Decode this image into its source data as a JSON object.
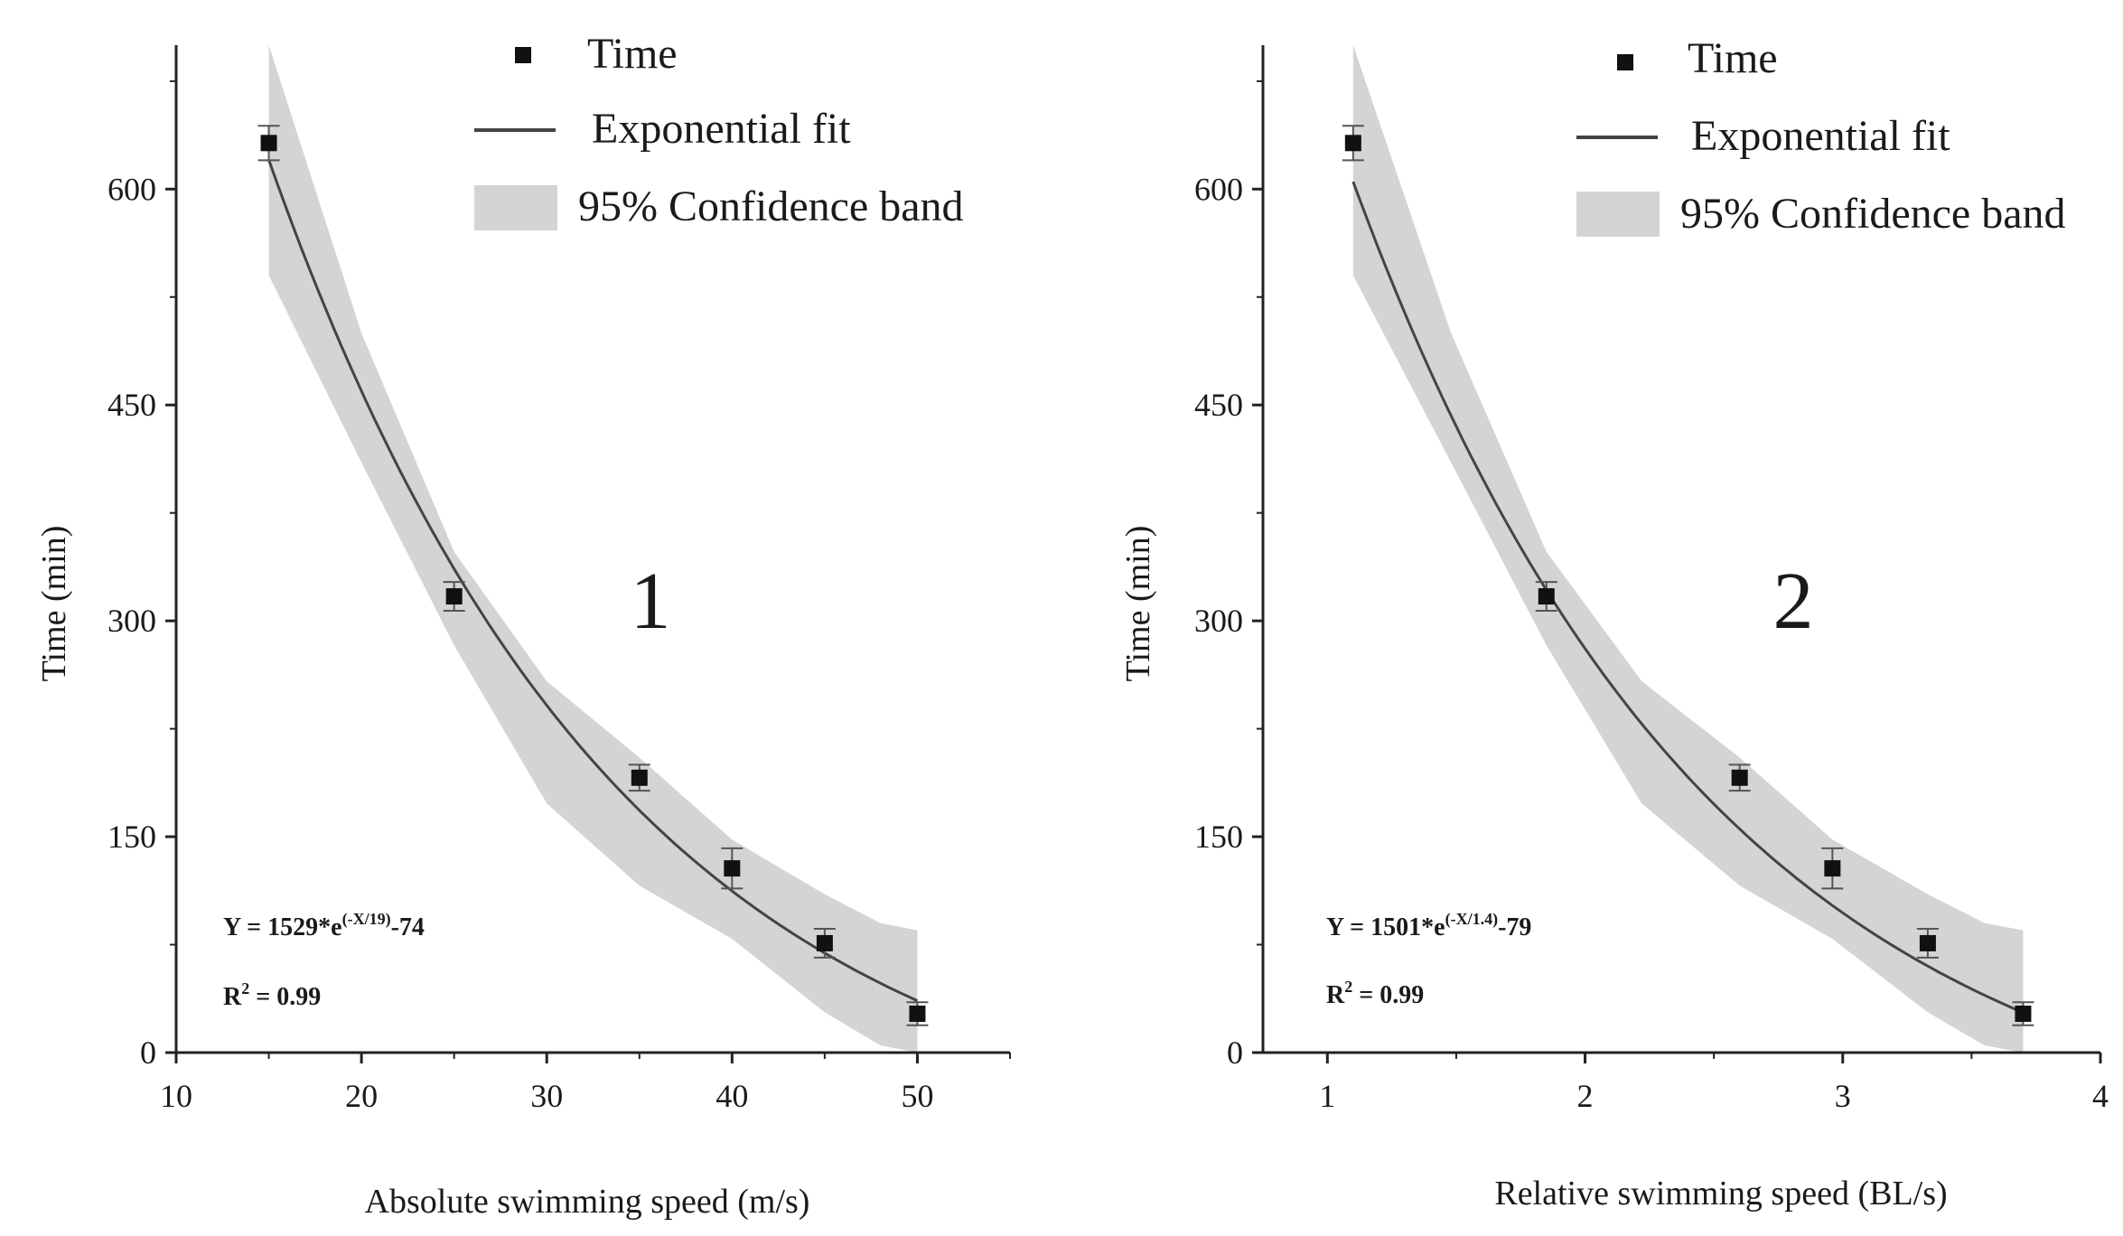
{
  "chart_data": [
    {
      "type": "scatter",
      "panel_label": "1",
      "xlabel": "Absolute swimming speed (m/s)",
      "ylabel": "Time (min)",
      "xlim": [
        10,
        55
      ],
      "ylim": [
        0,
        700
      ],
      "xticks": [
        10,
        20,
        30,
        40,
        50
      ],
      "yticks": [
        0,
        150,
        300,
        450,
        600
      ],
      "series": [
        {
          "name": "Time",
          "x": [
            15,
            25,
            35,
            40,
            45,
            50
          ],
          "y": [
            632,
            317,
            191,
            128,
            76,
            27
          ],
          "error": [
            12,
            10,
            9,
            14,
            10,
            8
          ]
        }
      ],
      "fit": {
        "name": "Exponential fit",
        "a": 1529,
        "b": 19,
        "c": -74,
        "x_range": [
          15,
          50
        ]
      },
      "band": {
        "name": "95% Confidence band",
        "x": [
          15,
          20,
          25,
          30,
          35,
          40,
          45,
          48,
          50
        ],
        "upper": [
          700,
          500,
          348,
          258,
          205,
          148,
          110,
          90,
          85
        ],
        "lower": [
          540,
          410,
          283,
          173,
          116,
          79,
          28,
          5,
          0
        ]
      },
      "legend": {
        "marker": "Time",
        "line": "Exponential fit",
        "band": "95% Confidence band"
      },
      "equation": {
        "main": "Y = 1529*e",
        "exponent": "(-X/19)",
        "tail": "-74"
      },
      "r2": {
        "prefix": "R",
        "sup": "2",
        "rest": " = 0.99"
      },
      "colors": {
        "marker": "#111111",
        "line": "#444444",
        "band": "#d4d4d4",
        "axis": "#222222"
      }
    },
    {
      "type": "scatter",
      "panel_label": "2",
      "xlabel": "Relative swimming speed (BL/s)",
      "ylabel": "Time (min)",
      "xlim": [
        0.75,
        4
      ],
      "ylim": [
        0,
        700
      ],
      "xticks": [
        1,
        2,
        3,
        4
      ],
      "yticks": [
        0,
        150,
        300,
        450,
        600
      ],
      "series": [
        {
          "name": "Time",
          "x": [
            1.1,
            1.85,
            2.6,
            2.96,
            3.33,
            3.7
          ],
          "y": [
            632,
            317,
            191,
            128,
            76,
            27
          ],
          "error": [
            12,
            10,
            9,
            14,
            10,
            8
          ]
        }
      ],
      "fit": {
        "name": "Exponential fit",
        "a": 1501,
        "b": 1.4,
        "c": -79,
        "x_range": [
          1.1,
          3.7
        ]
      },
      "band": {
        "name": "95% Confidence band",
        "x": [
          1.1,
          1.48,
          1.85,
          2.22,
          2.6,
          2.96,
          3.33,
          3.55,
          3.7
        ],
        "upper": [
          700,
          500,
          348,
          258,
          205,
          148,
          110,
          90,
          85
        ],
        "lower": [
          540,
          410,
          283,
          173,
          116,
          79,
          28,
          5,
          0
        ]
      },
      "legend": {
        "marker": "Time",
        "line": "Exponential fit",
        "band": "95% Confidence band"
      },
      "equation": {
        "main": "Y = 1501*e",
        "exponent": "(-X/1.4)",
        "tail": "-79"
      },
      "r2": {
        "prefix": "R",
        "sup": "2",
        "rest": " = 0.99"
      },
      "colors": {
        "marker": "#111111",
        "line": "#444444",
        "band": "#d4d4d4",
        "axis": "#222222"
      }
    }
  ]
}
